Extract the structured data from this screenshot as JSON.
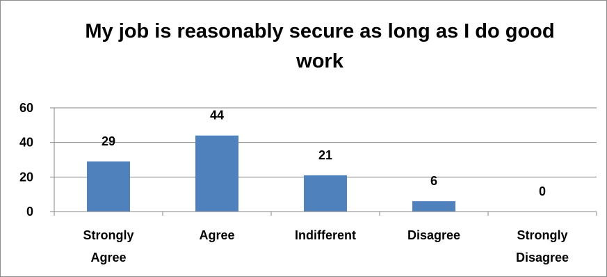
{
  "chart_data": {
    "type": "bar",
    "title": "My job is reasonably secure as long as I do good work",
    "categories": [
      "Strongly Agree",
      "Agree",
      "Indifferent",
      "Disagree",
      "Strongly Disagree"
    ],
    "category_lines": [
      [
        "Strongly",
        "Agree"
      ],
      [
        "Agree"
      ],
      [
        "Indifferent"
      ],
      [
        "Disagree"
      ],
      [
        "Strongly",
        "Disagree"
      ]
    ],
    "values": [
      29,
      44,
      21,
      6,
      0
    ],
    "data_labels": [
      "29",
      "44",
      "21",
      "6",
      "0"
    ],
    "y_ticks": [
      "0",
      "20",
      "40",
      "60"
    ],
    "ylim": [
      0,
      60
    ],
    "xlabel": "",
    "ylabel": "",
    "grid": true,
    "legend": "none",
    "colors": {
      "bar": "#4f81bd",
      "grid": "#878787",
      "axis": "#878787",
      "frame": "#8c8c8c"
    }
  }
}
